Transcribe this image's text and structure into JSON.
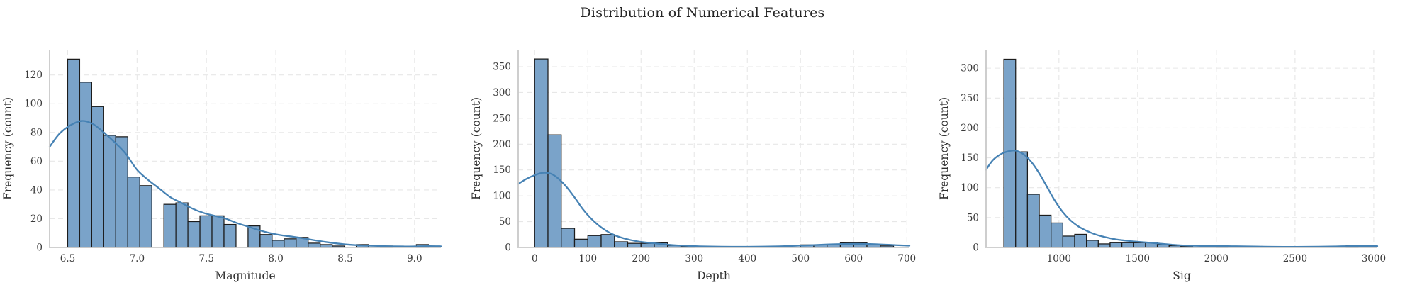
{
  "figure": {
    "title": "Distribution of Numerical Features"
  },
  "style": {
    "bar_fill": "#7AA3C9",
    "bar_edge": "#1c1c1c",
    "kde_color": "#4682B4",
    "grid_color": "#e7e7e7",
    "spine_color": "#c9c9c9",
    "tick_label_color": "#3a3a3a",
    "axis_label_color": "#303030"
  },
  "chart_data": [
    {
      "type": "bar",
      "subtype": "histogram-with-kde",
      "name": "magnitude",
      "title": "",
      "xlabel": "Magnitude",
      "ylabel": "Frequency (count)",
      "bin_start": 6.5,
      "bin_width": 0.086667,
      "values": [
        131,
        115,
        98,
        78,
        77,
        49,
        43,
        0,
        30,
        31,
        18,
        22,
        22,
        16,
        0,
        15,
        9,
        5,
        6,
        7,
        3,
        2,
        1,
        0,
        2,
        0,
        1,
        0,
        0,
        2
      ],
      "xlim": [
        6.37,
        9.19
      ],
      "ylim": [
        0,
        137.6
      ],
      "xticks": [
        6.5,
        7.0,
        7.5,
        8.0,
        8.5,
        9.0
      ],
      "xtick_labels": [
        "6.5",
        "7.0",
        "7.5",
        "8.0",
        "8.5",
        "9.0"
      ],
      "yticks": [
        0,
        20,
        40,
        60,
        80,
        100,
        120
      ],
      "ytick_labels": [
        "0",
        "20",
        "40",
        "60",
        "80",
        "100",
        "120"
      ],
      "grid": true,
      "legend": "none",
      "kde": [
        [
          6.37,
          70
        ],
        [
          6.44,
          79
        ],
        [
          6.52,
          85
        ],
        [
          6.6,
          88
        ],
        [
          6.68,
          86
        ],
        [
          6.76,
          80
        ],
        [
          6.84,
          73
        ],
        [
          6.92,
          65
        ],
        [
          7.0,
          54
        ],
        [
          7.08,
          47
        ],
        [
          7.16,
          41
        ],
        [
          7.24,
          35
        ],
        [
          7.32,
          31
        ],
        [
          7.4,
          27
        ],
        [
          7.48,
          24
        ],
        [
          7.56,
          22
        ],
        [
          7.64,
          20
        ],
        [
          7.72,
          17
        ],
        [
          7.8,
          14.5
        ],
        [
          7.88,
          12
        ],
        [
          7.96,
          10
        ],
        [
          8.04,
          8.5
        ],
        [
          8.12,
          7.5
        ],
        [
          8.2,
          6.3
        ],
        [
          8.28,
          5
        ],
        [
          8.36,
          3.8
        ],
        [
          8.44,
          2.8
        ],
        [
          8.52,
          2
        ],
        [
          8.6,
          1.5
        ],
        [
          8.68,
          1.2
        ],
        [
          8.76,
          1.0
        ],
        [
          8.84,
          0.8
        ],
        [
          8.92,
          0.7
        ],
        [
          9.0,
          0.7
        ],
        [
          9.1,
          0.9
        ],
        [
          9.19,
          0.8
        ]
      ]
    },
    {
      "type": "bar",
      "subtype": "histogram-with-kde",
      "name": "depth",
      "title": "",
      "xlabel": "Depth",
      "ylabel": "Frequency (count)",
      "bin_start": 0,
      "bin_width": 25,
      "values": [
        365,
        218,
        37,
        16,
        23,
        25,
        11,
        8,
        8,
        9,
        4,
        2,
        0,
        0,
        0,
        0,
        0,
        0,
        0,
        0,
        5,
        5,
        5,
        9,
        9,
        6,
        3
      ],
      "xlim": [
        -31,
        705
      ],
      "ylim": [
        0,
        383
      ],
      "xticks": [
        0,
        100,
        200,
        300,
        400,
        500,
        600,
        700
      ],
      "xtick_labels": [
        "0",
        "100",
        "200",
        "300",
        "400",
        "500",
        "600",
        "700"
      ],
      "yticks": [
        0,
        50,
        100,
        150,
        200,
        250,
        300,
        350
      ],
      "ytick_labels": [
        "0",
        "50",
        "100",
        "150",
        "200",
        "250",
        "300",
        "350"
      ],
      "grid": true,
      "legend": "none",
      "kde": [
        [
          -31,
          123
        ],
        [
          -15,
          133
        ],
        [
          0,
          140
        ],
        [
          15,
          144.5
        ],
        [
          30,
          143
        ],
        [
          45,
          133
        ],
        [
          60,
          117
        ],
        [
          75,
          97
        ],
        [
          90,
          75
        ],
        [
          105,
          57
        ],
        [
          120,
          43
        ],
        [
          135,
          32
        ],
        [
          150,
          24
        ],
        [
          165,
          18.5
        ],
        [
          180,
          14.5
        ],
        [
          195,
          11.5
        ],
        [
          210,
          9.5
        ],
        [
          230,
          7.5
        ],
        [
          250,
          5.5
        ],
        [
          270,
          4
        ],
        [
          290,
          3
        ],
        [
          310,
          2.2
        ],
        [
          340,
          1.6
        ],
        [
          370,
          1.3
        ],
        [
          400,
          1.3
        ],
        [
          430,
          1.6
        ],
        [
          460,
          2.2
        ],
        [
          490,
          3.2
        ],
        [
          520,
          4.5
        ],
        [
          550,
          5.8
        ],
        [
          580,
          6.7
        ],
        [
          605,
          7
        ],
        [
          630,
          6.6
        ],
        [
          655,
          5.7
        ],
        [
          680,
          4.5
        ],
        [
          705,
          3.5
        ]
      ]
    },
    {
      "type": "bar",
      "subtype": "histogram-with-kde",
      "name": "sig",
      "title": "",
      "xlabel": "Sig",
      "ylabel": "Frequency (count)",
      "bin_start": 650,
      "bin_width": 75,
      "values": [
        315,
        160,
        89,
        54,
        41,
        19,
        22,
        12,
        6,
        8,
        8,
        8,
        8,
        5,
        3,
        2,
        0,
        0,
        3,
        0,
        0,
        0,
        0,
        0,
        0,
        0,
        0,
        0,
        0,
        3
      ],
      "xlim": [
        537,
        3023
      ],
      "ylim": [
        0,
        331
      ],
      "xticks": [
        1000,
        1500,
        2000,
        2500,
        3000
      ],
      "xtick_labels": [
        "1000",
        "1500",
        "2000",
        "2500",
        "3000"
      ],
      "yticks": [
        0,
        50,
        100,
        150,
        200,
        250,
        300
      ],
      "ytick_labels": [
        "0",
        "50",
        "100",
        "150",
        "200",
        "250",
        "300"
      ],
      "grid": true,
      "legend": "none",
      "kde": [
        [
          537,
          130
        ],
        [
          580,
          146
        ],
        [
          630,
          156
        ],
        [
          680,
          161
        ],
        [
          725,
          162
        ],
        [
          775,
          156
        ],
        [
          825,
          143
        ],
        [
          875,
          124
        ],
        [
          925,
          101
        ],
        [
          975,
          78
        ],
        [
          1025,
          59
        ],
        [
          1075,
          45
        ],
        [
          1125,
          35
        ],
        [
          1175,
          28
        ],
        [
          1225,
          22.5
        ],
        [
          1275,
          18.5
        ],
        [
          1325,
          15.5
        ],
        [
          1375,
          13
        ],
        [
          1425,
          11.5
        ],
        [
          1475,
          10
        ],
        [
          1525,
          9
        ],
        [
          1575,
          8
        ],
        [
          1625,
          6.8
        ],
        [
          1675,
          5.6
        ],
        [
          1725,
          4.5
        ],
        [
          1775,
          3.6
        ],
        [
          1825,
          3
        ],
        [
          1900,
          2.6
        ],
        [
          1975,
          2.4
        ],
        [
          2050,
          2.3
        ],
        [
          2125,
          2
        ],
        [
          2200,
          1.7
        ],
        [
          2275,
          1.4
        ],
        [
          2350,
          1.1
        ],
        [
          2425,
          1
        ],
        [
          2500,
          1
        ],
        [
          2575,
          1.1
        ],
        [
          2650,
          1.3
        ],
        [
          2725,
          1.6
        ],
        [
          2800,
          2
        ],
        [
          2875,
          2.3
        ],
        [
          2950,
          2.4
        ],
        [
          3023,
          2.2
        ]
      ]
    }
  ]
}
